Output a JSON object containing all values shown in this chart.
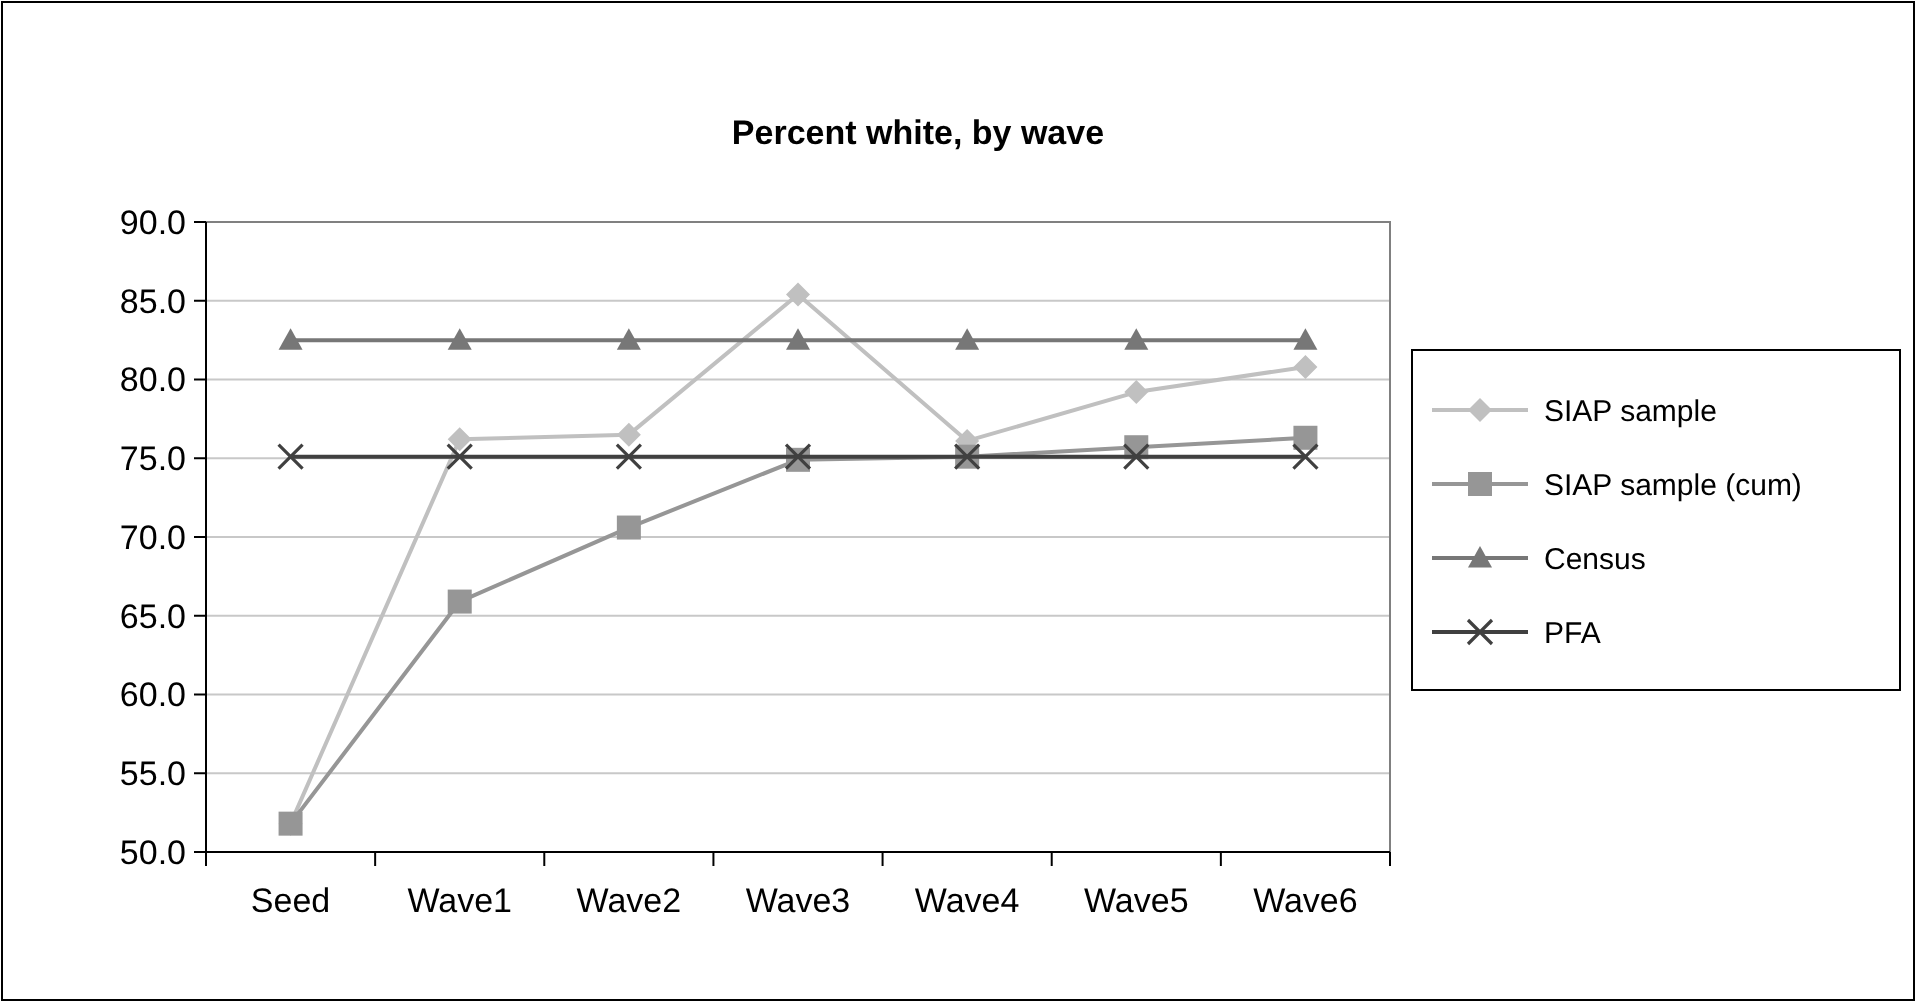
{
  "chart_data": {
    "type": "line",
    "title": "Percent white, by wave",
    "categories": [
      "Seed",
      "Wave1",
      "Wave2",
      "Wave3",
      "Wave4",
      "Wave5",
      "Wave6"
    ],
    "ylim": [
      50,
      90
    ],
    "yticks": [
      {
        "value": 50,
        "label": "50.0"
      },
      {
        "value": 55,
        "label": "55.0"
      },
      {
        "value": 60,
        "label": "60.0"
      },
      {
        "value": 65,
        "label": "65.0"
      },
      {
        "value": 70,
        "label": "70.0"
      },
      {
        "value": 75,
        "label": "75.0"
      },
      {
        "value": 80,
        "label": "80.0"
      },
      {
        "value": 85,
        "label": "85.0"
      },
      {
        "value": 90,
        "label": "90.0"
      }
    ],
    "grid": "y",
    "legend": "right",
    "series": [
      {
        "name": "SIAP sample",
        "color": "#c0c0c0",
        "marker": "diamond",
        "values": [
          51.8,
          76.2,
          76.5,
          85.4,
          76.1,
          79.2,
          80.8
        ]
      },
      {
        "name": "SIAP sample (cum)",
        "color": "#969696",
        "marker": "square",
        "values": [
          51.8,
          65.9,
          70.6,
          74.9,
          75.1,
          75.7,
          76.3
        ]
      },
      {
        "name": "Census",
        "color": "#777777",
        "marker": "triangle",
        "values": [
          82.5,
          82.5,
          82.5,
          82.5,
          82.5,
          82.5,
          82.5
        ]
      },
      {
        "name": "PFA",
        "color": "#404040",
        "marker": "cross",
        "values": [
          75.1,
          75.1,
          75.1,
          75.1,
          75.1,
          75.1,
          75.1
        ]
      }
    ]
  }
}
